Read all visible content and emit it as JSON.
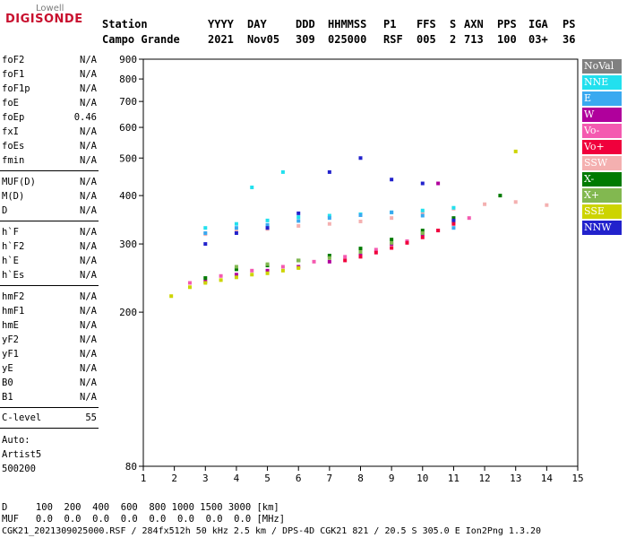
{
  "logo": {
    "top": "Lowell",
    "main": "DIGISONDE"
  },
  "header": {
    "labels": [
      "Station",
      "YYYY",
      "DAY",
      "DDD",
      "HHMMSS",
      "P1",
      "FFS",
      "S",
      "AXN",
      "PPS",
      "IGA",
      "PS"
    ],
    "values": [
      "Campo Grande",
      "2021",
      "Nov05",
      "309",
      "025000",
      "RSF",
      "005",
      "2",
      "713",
      "100",
      "03+",
      "36"
    ]
  },
  "params": {
    "group1": [
      {
        "k": "foF2",
        "v": "N/A"
      },
      {
        "k": "foF1",
        "v": "N/A"
      },
      {
        "k": "foF1p",
        "v": "N/A"
      },
      {
        "k": "foE",
        "v": "N/A"
      },
      {
        "k": "foEp",
        "v": "0.46"
      },
      {
        "k": "fxI",
        "v": "N/A"
      },
      {
        "k": "foEs",
        "v": "N/A"
      },
      {
        "k": "fmin",
        "v": "N/A"
      }
    ],
    "group2": [
      {
        "k": "MUF(D)",
        "v": "N/A"
      },
      {
        "k": "M(D)",
        "v": "N/A"
      },
      {
        "k": "D",
        "v": "N/A"
      }
    ],
    "group3": [
      {
        "k": "h`F",
        "v": "N/A"
      },
      {
        "k": "h`F2",
        "v": "N/A"
      },
      {
        "k": "h`E",
        "v": "N/A"
      },
      {
        "k": "h`Es",
        "v": "N/A"
      }
    ],
    "group4": [
      {
        "k": "hmF2",
        "v": "N/A"
      },
      {
        "k": "hmF1",
        "v": "N/A"
      },
      {
        "k": "hmE",
        "v": "N/A"
      },
      {
        "k": "yF2",
        "v": "N/A"
      },
      {
        "k": "yF1",
        "v": "N/A"
      },
      {
        "k": "yE",
        "v": "N/A"
      },
      {
        "k": "B0",
        "v": "N/A"
      },
      {
        "k": "B1",
        "v": "N/A"
      }
    ],
    "clevel": {
      "k": "C-level",
      "v": "55"
    },
    "auto": [
      "Auto:",
      "Artist5",
      "500200"
    ]
  },
  "legend": [
    {
      "label": "NoVal",
      "color": "#808080"
    },
    {
      "label": "NNE",
      "color": "#22e0ee"
    },
    {
      "label": "E",
      "color": "#3aa9f0"
    },
    {
      "label": "W",
      "color": "#b0009c"
    },
    {
      "label": "Vo-",
      "color": "#f45ab0"
    },
    {
      "label": "Vo+",
      "color": "#f0003c"
    },
    {
      "label": "SSW",
      "color": "#f4b0b0"
    },
    {
      "label": "X-",
      "color": "#007a00"
    },
    {
      "label": "X+",
      "color": "#82b850"
    },
    {
      "label": "SSE",
      "color": "#cdd400"
    },
    {
      "label": "NNW",
      "color": "#2222cc"
    }
  ],
  "bottom": {
    "d_row": "D     100  200  400  600  800 1000 1500 3000 [km]",
    "muf_row": "MUF   0.0  0.0  0.0  0.0  0.0  0.0  0.0  0.0 [MHz]",
    "footer": "CGK21_2021309025000.RSF / 284fx512h 50 kHz 2.5 km / DPS-4D CGK21 821 / 20.5 S 305.0 E Ion2Png 1.3.20"
  },
  "chart_data": {
    "type": "scatter",
    "xlim": [
      1,
      15
    ],
    "ylim": [
      80,
      900
    ],
    "x_ticks": [
      1,
      2,
      3,
      4,
      5,
      6,
      7,
      8,
      9,
      10,
      11,
      12,
      13,
      14,
      15
    ],
    "y_ticks": [
      80,
      200,
      300,
      400,
      500,
      600,
      700,
      800,
      900
    ],
    "y_scale": "log",
    "grid": false,
    "legend_position": "right",
    "series": [
      {
        "name": "SSW",
        "color": "#f4b0b0",
        "points": [
          [
            3.0,
            318
          ],
          [
            4.0,
            323
          ],
          [
            5.0,
            328
          ],
          [
            6.0,
            334
          ],
          [
            7.0,
            338
          ],
          [
            8.0,
            343
          ],
          [
            9.0,
            350
          ],
          [
            10.0,
            362
          ],
          [
            11.0,
            370
          ],
          [
            12.0,
            380
          ],
          [
            13.0,
            385
          ],
          [
            14.0,
            378
          ]
        ]
      },
      {
        "name": "NNE",
        "color": "#22e0ee",
        "points": [
          [
            3.0,
            330
          ],
          [
            4.0,
            338
          ],
          [
            5.0,
            345
          ],
          [
            6.0,
            352
          ],
          [
            7.0,
            355
          ],
          [
            8.0,
            358
          ],
          [
            9.0,
            362
          ],
          [
            10.0,
            366
          ],
          [
            11.0,
            372
          ],
          [
            4.5,
            420
          ],
          [
            5.5,
            460
          ]
        ]
      },
      {
        "name": "E",
        "color": "#3aa9f0",
        "points": [
          [
            3.0,
            320
          ],
          [
            4.0,
            330
          ],
          [
            5.0,
            336
          ],
          [
            6.0,
            344
          ],
          [
            7.0,
            350
          ],
          [
            8.0,
            356
          ],
          [
            9.0,
            362
          ],
          [
            10.0,
            355
          ],
          [
            11.0,
            330
          ]
        ]
      },
      {
        "name": "Vo-",
        "color": "#f45ab0",
        "points": [
          [
            2.5,
            238
          ],
          [
            3.5,
            248
          ],
          [
            4.5,
            256
          ],
          [
            5.5,
            262
          ],
          [
            6.5,
            270
          ],
          [
            7.5,
            278
          ],
          [
            8.5,
            290
          ],
          [
            9.5,
            305
          ],
          [
            10.5,
            325
          ],
          [
            11.5,
            350
          ]
        ]
      },
      {
        "name": "W",
        "color": "#b0009c",
        "points": [
          [
            3.0,
            240
          ],
          [
            4.0,
            250
          ],
          [
            5.0,
            256
          ],
          [
            6.0,
            262
          ],
          [
            7.0,
            270
          ],
          [
            8.0,
            282
          ],
          [
            9.0,
            300
          ],
          [
            10.0,
            318
          ],
          [
            11.0,
            345
          ],
          [
            10.5,
            430
          ]
        ]
      },
      {
        "name": "SSE",
        "color": "#cdd400",
        "points": [
          [
            2.5,
            232
          ],
          [
            3.0,
            238
          ],
          [
            3.5,
            242
          ],
          [
            4.0,
            246
          ],
          [
            4.5,
            250
          ],
          [
            5.0,
            252
          ],
          [
            5.5,
            256
          ],
          [
            6.0,
            260
          ],
          [
            1.9,
            220
          ],
          [
            13.0,
            520
          ]
        ]
      },
      {
        "name": "X-",
        "color": "#007a00",
        "points": [
          [
            3.0,
            245
          ],
          [
            4.0,
            258
          ],
          [
            5.0,
            264
          ],
          [
            6.0,
            272
          ],
          [
            7.0,
            280
          ],
          [
            8.0,
            292
          ],
          [
            9.0,
            308
          ],
          [
            10.0,
            325
          ],
          [
            11.0,
            350
          ],
          [
            12.5,
            400
          ]
        ]
      },
      {
        "name": "X+",
        "color": "#82b850",
        "points": [
          [
            4.0,
            262
          ],
          [
            5.0,
            266
          ],
          [
            6.0,
            272
          ],
          [
            7.0,
            276
          ],
          [
            8.0,
            286
          ],
          [
            9.0,
            302
          ],
          [
            10.0,
            320
          ],
          [
            11.0,
            342
          ]
        ]
      },
      {
        "name": "NNW",
        "color": "#2222cc",
        "points": [
          [
            3.0,
            300
          ],
          [
            4.0,
            320
          ],
          [
            5.0,
            330
          ],
          [
            6.0,
            360
          ],
          [
            7.0,
            460
          ],
          [
            8.0,
            500
          ],
          [
            9.0,
            440
          ],
          [
            10.0,
            430
          ],
          [
            11.0,
            345
          ]
        ]
      },
      {
        "name": "Vo+",
        "color": "#f0003c",
        "points": [
          [
            7.5,
            272
          ],
          [
            8.0,
            278
          ],
          [
            8.5,
            285
          ],
          [
            9.0,
            293
          ],
          [
            9.5,
            302
          ],
          [
            10.0,
            312
          ],
          [
            10.5,
            325
          ],
          [
            11.0,
            338
          ]
        ]
      }
    ]
  }
}
